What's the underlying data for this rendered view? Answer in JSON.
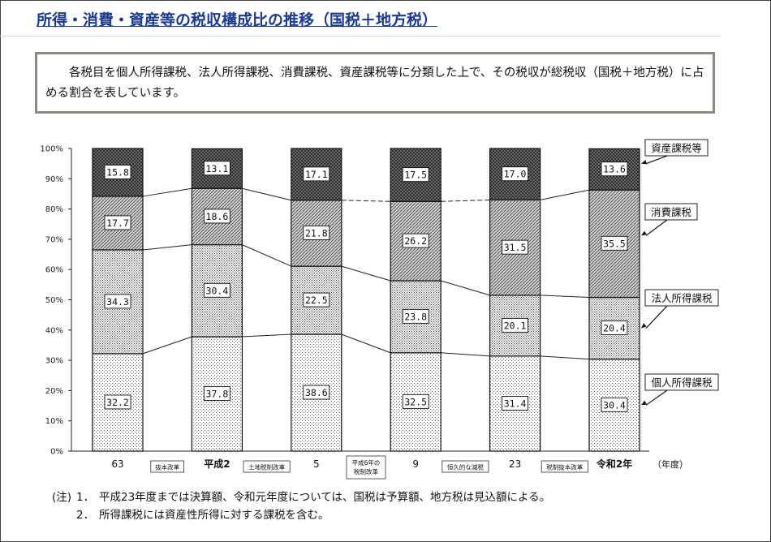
{
  "page": {
    "title": "所得・消費・資産等の税収構成比の推移（国税＋地方税）",
    "description": "各税目を個人所得課税、法人所得課税、消費課税、資産課税等に分類した上で、その税収が総税収（国税＋地方税）に占める割合を表しています。"
  },
  "chart_data": {
    "type": "bar",
    "stacked": true,
    "categories": [
      "63",
      "平成2",
      "5",
      "9",
      "23",
      "令和2年"
    ],
    "x_unit": "（年度）",
    "ylim": [
      0,
      100
    ],
    "yticks": [
      "0%",
      "10%",
      "20%",
      "30%",
      "40%",
      "50%",
      "60%",
      "70%",
      "80%",
      "90%",
      "100%"
    ],
    "series": [
      {
        "name": "個人所得課税",
        "values": [
          32.2,
          37.8,
          38.6,
          32.5,
          31.4,
          30.4
        ],
        "labels": [
          "32.2",
          "37.8",
          "38.6",
          "32.5",
          "31.4",
          "30.4"
        ]
      },
      {
        "name": "法人所得課税",
        "values": [
          34.3,
          30.4,
          22.5,
          23.8,
          20.1,
          20.4
        ],
        "labels": [
          "34.3",
          "30.4",
          "22.5",
          "23.8",
          "20.1",
          "20.4"
        ]
      },
      {
        "name": "消費課税",
        "values": [
          17.7,
          18.6,
          21.8,
          26.2,
          31.5,
          35.5
        ],
        "labels": [
          "17.7",
          "18.6",
          "21.8",
          "26.2",
          "31.5",
          "35.5"
        ]
      },
      {
        "name": "資産課税等",
        "values": [
          15.8,
          13.1,
          17.1,
          17.5,
          17.0,
          13.6
        ],
        "labels": [
          "15.8",
          "13.1",
          "17.1",
          "17.5",
          "17.0",
          "13.6"
        ]
      }
    ],
    "reforms": [
      "抜本改革",
      "土地税制改革",
      "平成6年の税制改革",
      "恒久的な減税",
      "税制抜本改革"
    ],
    "legend_placement": "right, labels with arrows"
  },
  "notes": {
    "lead": "(注)",
    "items": [
      {
        "num": "1．",
        "text": "平成23年度までは決算額、令和元年度については、国税は予算額、地方税は見込額による。"
      },
      {
        "num": "2．",
        "text": "所得課税には資産性所得に対する課税を含む。"
      }
    ]
  }
}
